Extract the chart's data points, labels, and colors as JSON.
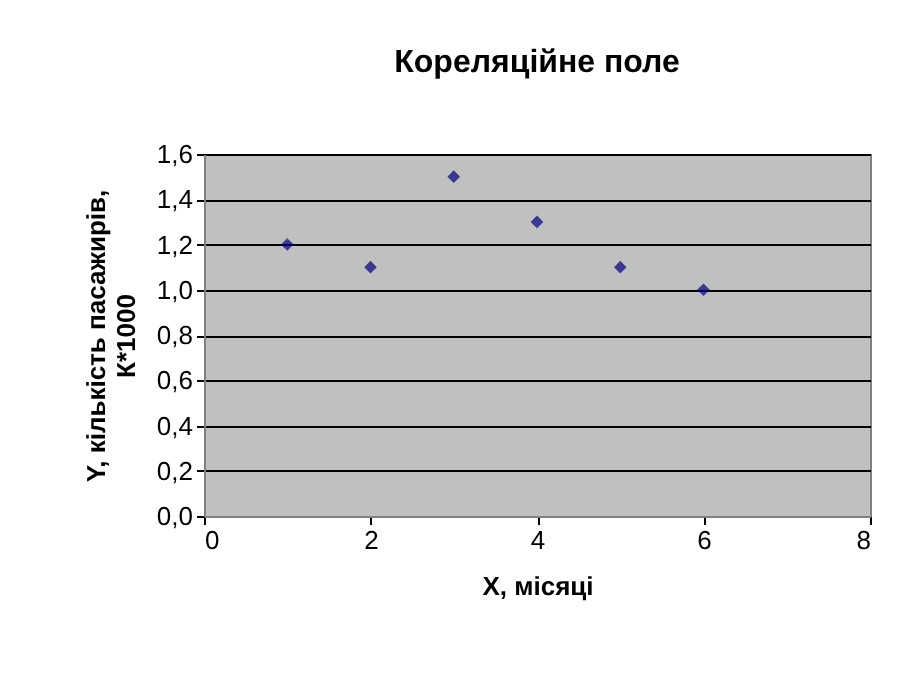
{
  "chart_data": {
    "type": "scatter",
    "title": "Кореляційне поле",
    "xlabel": "X, місяці",
    "ylabel": "Y, кількість пасажирів, К*1000",
    "x": [
      1,
      2,
      3,
      4,
      5,
      6
    ],
    "series": [
      {
        "color": "#000080",
        "values": [
          1.2,
          1.1,
          1.5,
          1.3,
          1.1,
          1.0
        ]
      }
    ],
    "xlim": [
      0,
      8
    ],
    "xticks": [
      0,
      2,
      4,
      6,
      8
    ],
    "ylim": [
      0,
      1.6
    ],
    "yticks": [
      {
        "value": 0,
        "label": "0,0"
      },
      {
        "value": 0.2,
        "label": "0,2"
      },
      {
        "value": 0.4,
        "label": "0,4"
      },
      {
        "value": 0.6,
        "label": "0,6"
      },
      {
        "value": 0.8,
        "label": "0,8"
      },
      {
        "value": 1.0,
        "label": "1,0"
      },
      {
        "value": 1.2,
        "label": "1,2"
      },
      {
        "value": 1.4,
        "label": "1,4"
      },
      {
        "value": 1.6,
        "label": "1,6"
      }
    ],
    "grid": "y",
    "marker": "diamond"
  }
}
